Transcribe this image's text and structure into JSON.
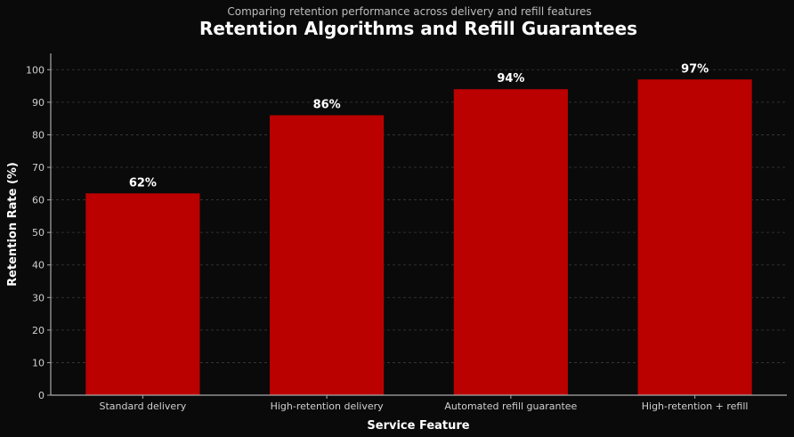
{
  "chart_data": {
    "type": "bar",
    "title": "Retention Algorithms and Refill Guarantees",
    "subtitle": "Comparing retention performance across delivery and refill features",
    "xlabel": "Service Feature",
    "ylabel": "Retention Rate (%)",
    "categories": [
      "Standard delivery",
      "High-retention delivery",
      "Automated refill guarantee",
      "High-retention + refill"
    ],
    "values": [
      62,
      86,
      94,
      97
    ],
    "data_labels": [
      "62%",
      "86%",
      "94%",
      "97%"
    ],
    "ylim": [
      0,
      105
    ],
    "yticks": [
      0,
      10,
      20,
      30,
      40,
      50,
      60,
      70,
      80,
      90,
      100
    ],
    "grid": true,
    "colors": {
      "bar": "#bb0000",
      "background": "#0a0a0a",
      "grid": "#3a3a3a",
      "axis": "#aaaaaa"
    }
  }
}
